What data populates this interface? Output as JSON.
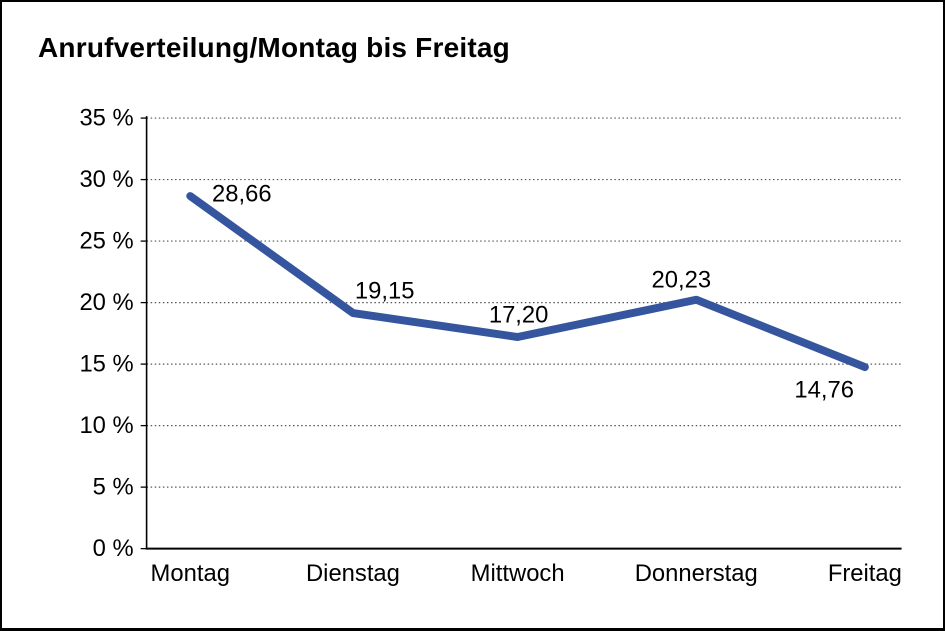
{
  "chart_data": {
    "type": "line",
    "title": "Anrufverteilung/Montag bis Freitag",
    "categories": [
      "Montag",
      "Dienstag",
      "Mittwoch",
      "Donnerstag",
      "Freitag"
    ],
    "series": [
      {
        "name": "Anrufverteilung",
        "values": [
          28.66,
          19.15,
          17.2,
          20.23,
          14.76
        ],
        "value_labels": [
          "28,66",
          "19,15",
          "17,20",
          "20,23",
          "14,76"
        ]
      }
    ],
    "xlabel": "",
    "ylabel": "",
    "ylim": [
      0,
      35
    ],
    "ytick_step": 5,
    "ytick_labels": [
      "0 %",
      "5 %",
      "10 %",
      "15 %",
      "20 %",
      "25 %",
      "30 %",
      "35 %"
    ],
    "grid": "horizontal dotted lines at each 5 % step",
    "legend": "none",
    "colors": {
      "line": "#35569E",
      "axis": "#000000",
      "gridline": "#555555",
      "text": "#000000",
      "background": "#ffffff",
      "frame_border": "#000000"
    }
  }
}
